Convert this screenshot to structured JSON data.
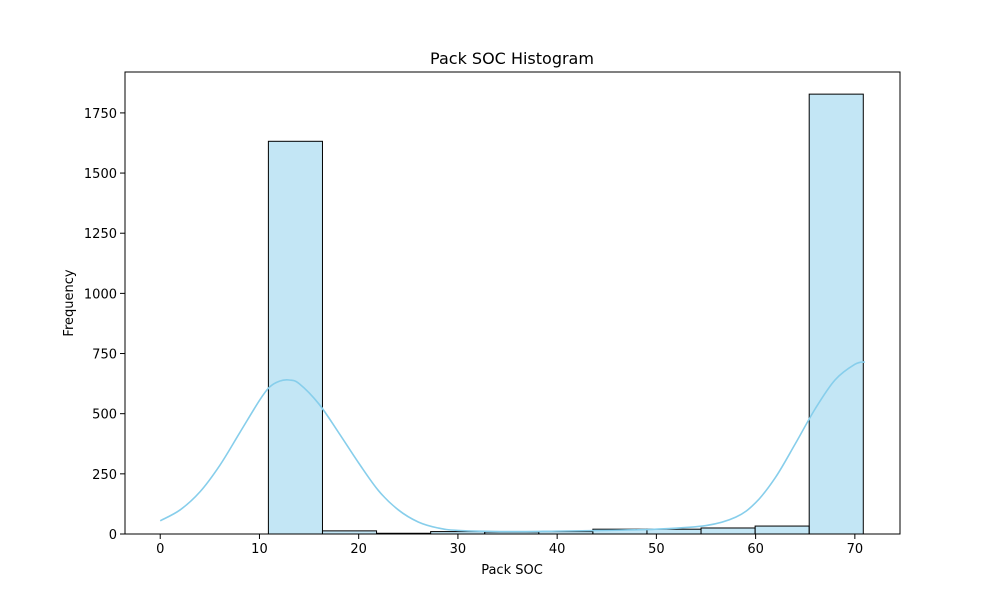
{
  "chart_data": {
    "type": "bar",
    "title": "Pack SOC Histogram",
    "xlabel": "Pack SOC",
    "ylabel": "Frequency",
    "xlim": [
      -3.55,
      74.55
    ],
    "ylim": [
      0,
      1920
    ],
    "xticks": [
      0,
      10,
      20,
      30,
      40,
      50,
      60,
      70
    ],
    "yticks": [
      0,
      250,
      500,
      750,
      1000,
      1250,
      1500,
      1750
    ],
    "bins": [
      {
        "x0": 0.0,
        "x1": 5.45,
        "value": 0
      },
      {
        "x0": 5.45,
        "x1": 10.9,
        "value": 0
      },
      {
        "x0": 10.9,
        "x1": 16.35,
        "value": 1632
      },
      {
        "x0": 16.35,
        "x1": 21.8,
        "value": 13
      },
      {
        "x0": 21.8,
        "x1": 27.25,
        "value": 3
      },
      {
        "x0": 27.25,
        "x1": 32.7,
        "value": 10
      },
      {
        "x0": 32.7,
        "x1": 38.15,
        "value": 8
      },
      {
        "x0": 38.15,
        "x1": 43.6,
        "value": 10
      },
      {
        "x0": 43.6,
        "x1": 49.05,
        "value": 20
      },
      {
        "x0": 49.05,
        "x1": 54.5,
        "value": 20
      },
      {
        "x0": 54.5,
        "x1": 59.95,
        "value": 25
      },
      {
        "x0": 59.95,
        "x1": 65.4,
        "value": 33
      },
      {
        "x0": 65.4,
        "x1": 70.85,
        "value": 1828
      }
    ],
    "kde": {
      "x": [
        0,
        2,
        4,
        6,
        8,
        10,
        11,
        12,
        13,
        14,
        16,
        18,
        20,
        22,
        24,
        26,
        28,
        30,
        35,
        40,
        45,
        50,
        55,
        58,
        60,
        62,
        64,
        66,
        68,
        70,
        71
      ],
      "y": [
        55,
        100,
        175,
        285,
        420,
        555,
        610,
        635,
        640,
        625,
        540,
        420,
        295,
        180,
        100,
        50,
        25,
        15,
        10,
        12,
        15,
        20,
        35,
        70,
        130,
        235,
        375,
        520,
        640,
        705,
        715
      ]
    },
    "colors": {
      "bar_fill": "#87ceeb",
      "bar_fill_opacity": 0.5,
      "bar_edge": "#000000",
      "kde_line": "#87ceeb"
    },
    "grid": false,
    "legend": false
  }
}
